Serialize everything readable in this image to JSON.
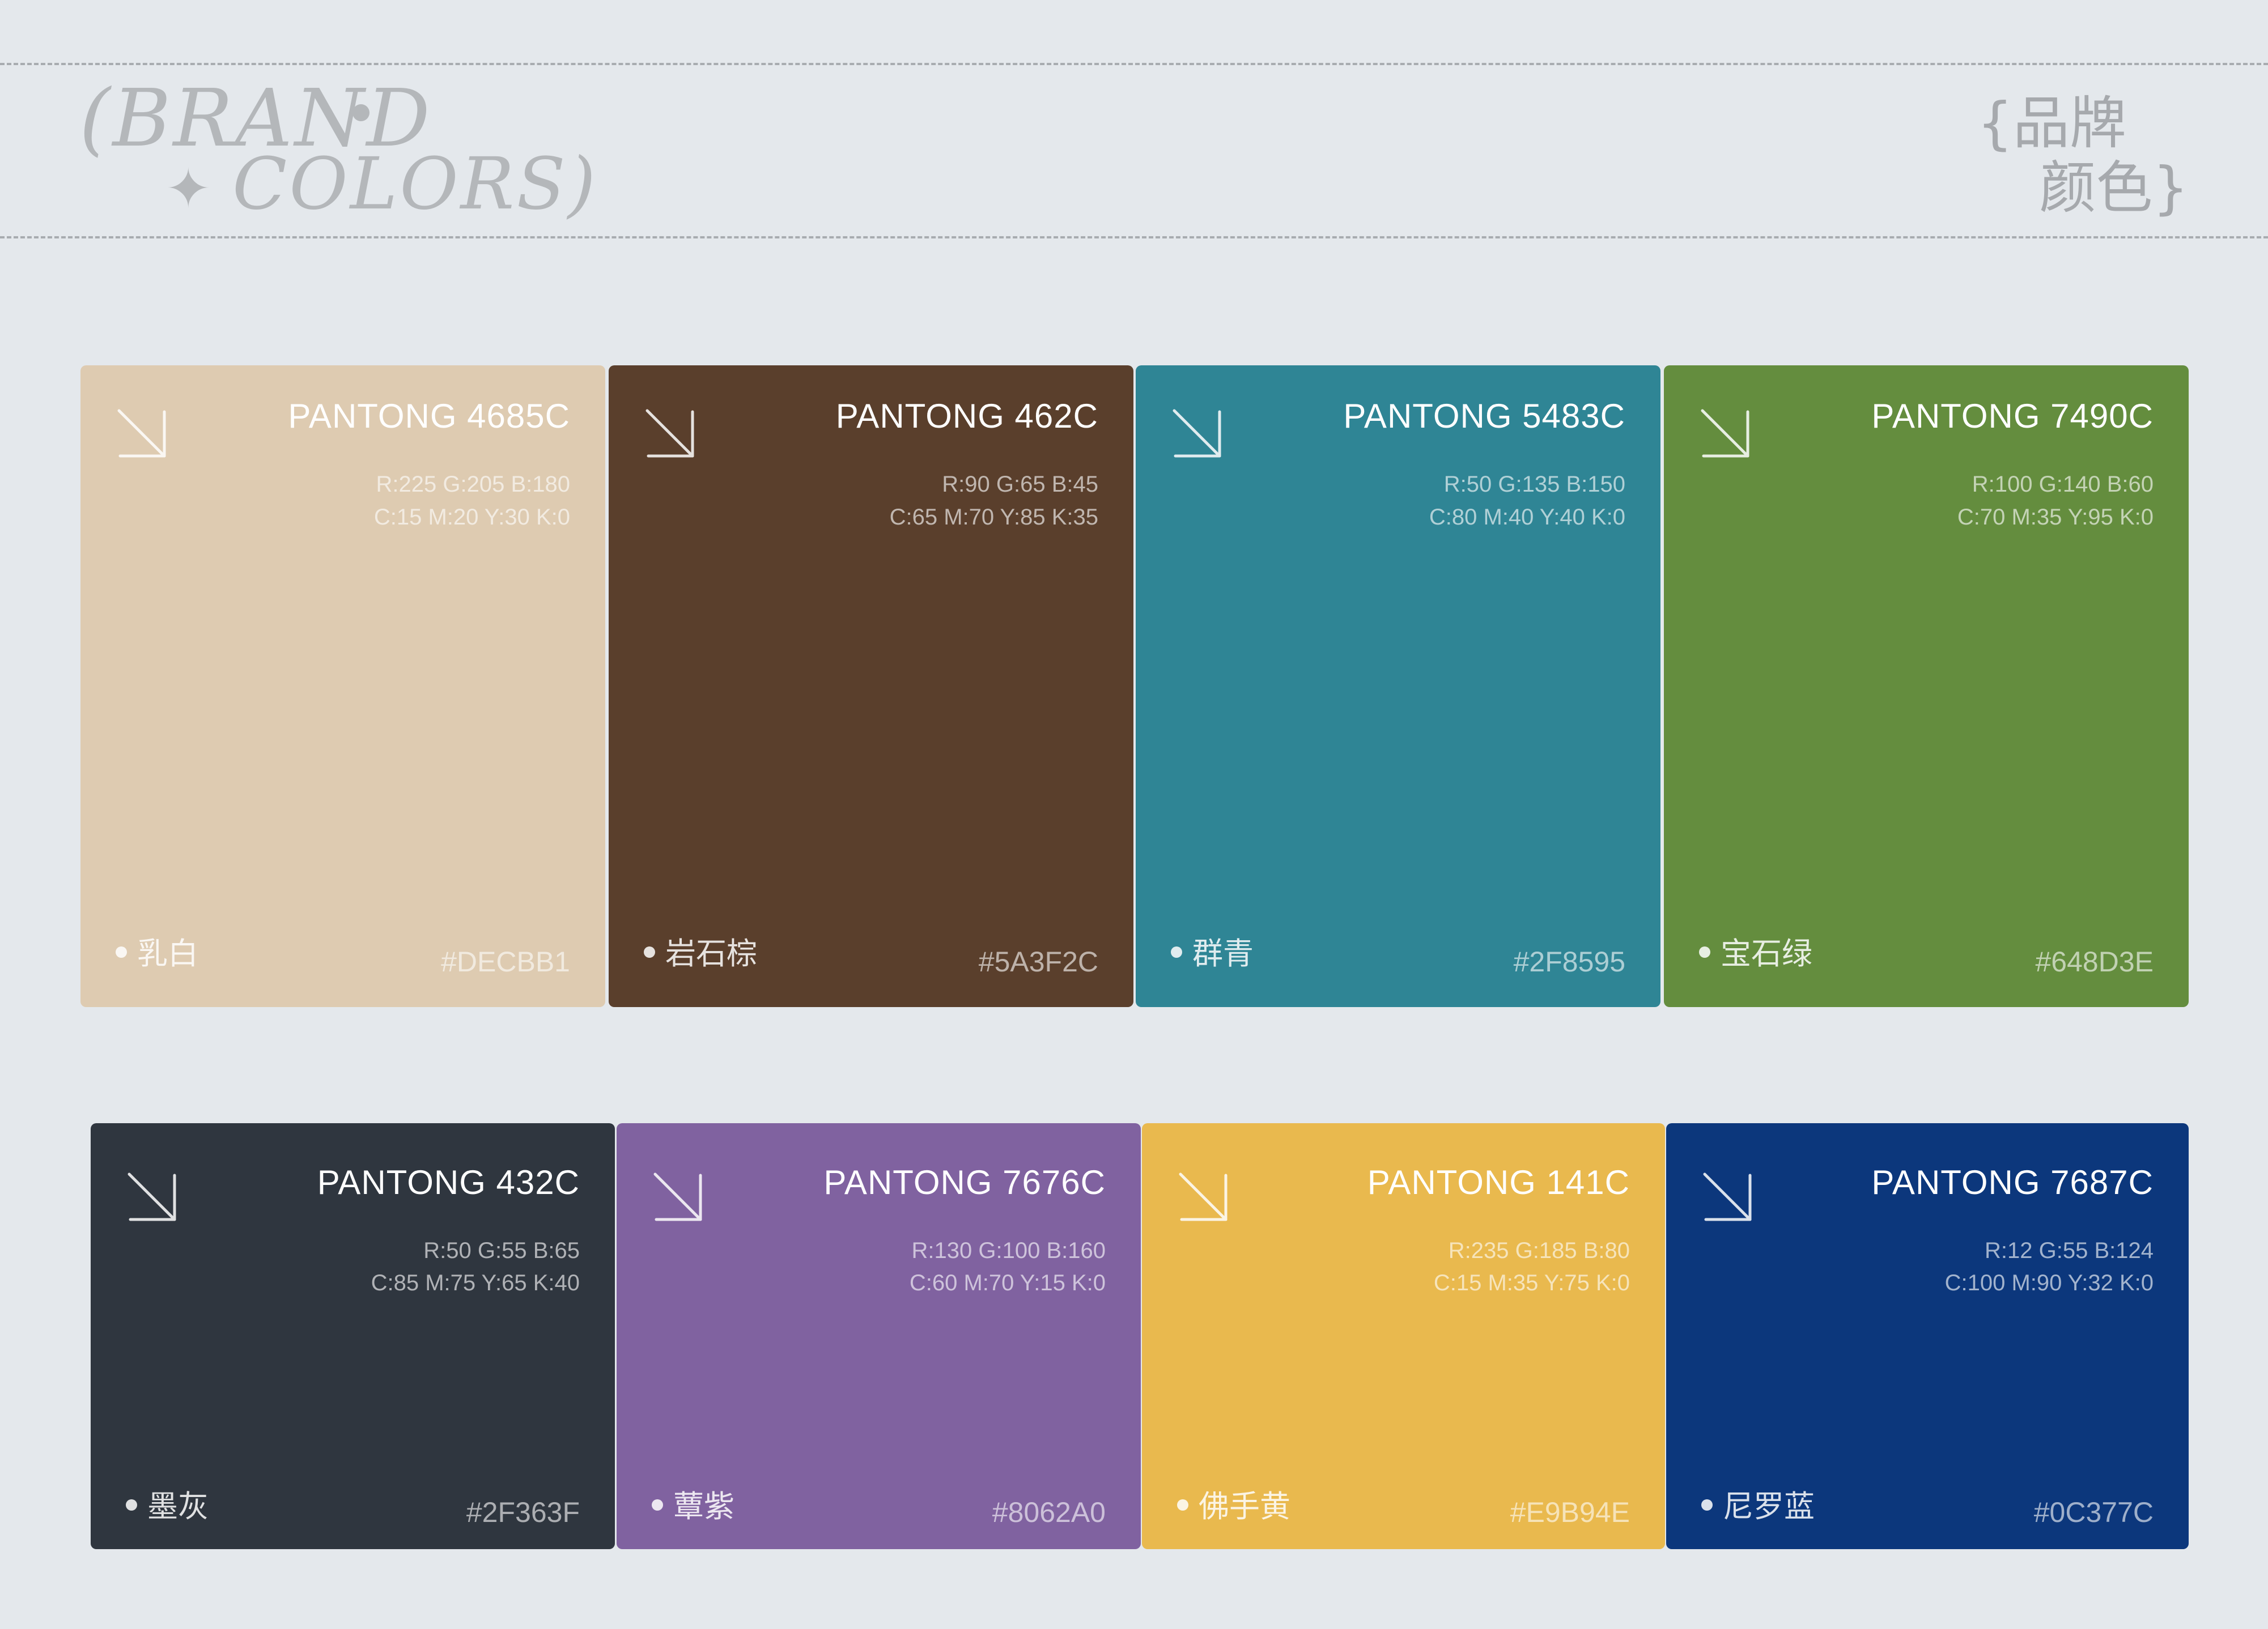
{
  "header": {
    "logo_line1": "(BRAND",
    "logo_line2": "COLORS)",
    "cn_line1": "{品牌",
    "cn_line2": "颜色}"
  },
  "colors": [
    {
      "pantone": "PANTONG 4685C",
      "rgb": "R:225  G:205  B:180",
      "cmyk": "C:15  M:20  Y:30  K:0",
      "name": "乳白",
      "hex": "#DECBB1",
      "bg": "#DECBB1",
      "fg": "#ffffff"
    },
    {
      "pantone": "PANTONG 462C",
      "rgb": "R:90  G:65  B:45",
      "cmyk": "C:65  M:70  Y:85  K:35",
      "name": "岩石棕",
      "hex": "#5A3F2C",
      "bg": "#5A3F2C",
      "fg": "#ffffff"
    },
    {
      "pantone": "PANTONG 5483C",
      "rgb": "R:50  G:135  B:150",
      "cmyk": "C:80  M:40  Y:40  K:0",
      "name": "群青",
      "hex": "#2F8595",
      "bg": "#2F8595",
      "fg": "#ffffff"
    },
    {
      "pantone": "PANTONG 7490C",
      "rgb": "R:100  G:140  B:60",
      "cmyk": "C:70  M:35  Y:95  K:0",
      "name": "宝石绿",
      "hex": "#648D3E",
      "bg": "#648D3E",
      "fg": "#ffffff"
    },
    {
      "pantone": "PANTONG 432C",
      "rgb": "R:50  G:55  B:65",
      "cmyk": "C:85 M:75  Y:65  K:40",
      "name": "墨灰",
      "hex": "#2F363F",
      "bg": "#2F363F",
      "fg": "#ffffff"
    },
    {
      "pantone": "PANTONG 7676C",
      "rgb": "R:130  G:100  B:160",
      "cmyk": "C:60  M:70  Y:15  K:0",
      "name": "蕈紫",
      "hex": "#8062A0",
      "bg": "#8062A0",
      "fg": "#ffffff"
    },
    {
      "pantone": "PANTONG 141C",
      "rgb": "R:235  G:185  B:80",
      "cmyk": "C:15  M:35  Y:75  K:0",
      "name": "佛手黄",
      "hex": "#E9B94E",
      "bg": "#E9B94E",
      "fg": "#ffffff"
    },
    {
      "pantone": "PANTONG 7687C",
      "rgb": "R:12  G:55  B:124",
      "cmyk": "C:100  M:90  Y:32  K:0",
      "name": "尼罗蓝",
      "hex": "#0C377C",
      "bg": "#0C377C",
      "fg": "#ffffff"
    }
  ]
}
